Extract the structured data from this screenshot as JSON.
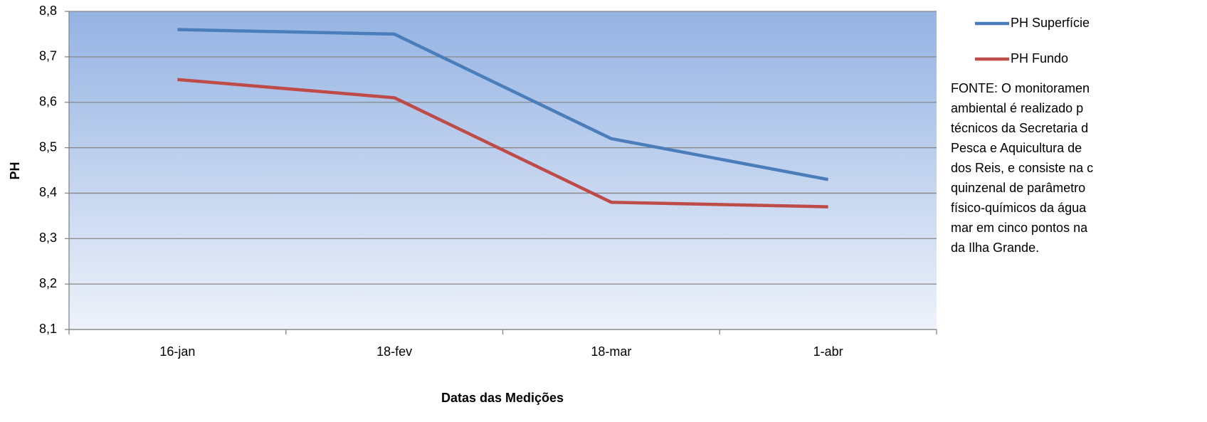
{
  "chart_data": {
    "type": "line",
    "categories": [
      "16-jan",
      "18-fev",
      "18-mar",
      "1-abr"
    ],
    "series": [
      {
        "name": "PH Superfície",
        "color": "#4a7ebb",
        "values": [
          8.76,
          8.75,
          8.52,
          8.43
        ]
      },
      {
        "name": "PH Fundo",
        "color": "#be4b48",
        "values": [
          8.65,
          8.61,
          8.38,
          8.37
        ]
      }
    ],
    "ylim": [
      8.1,
      8.8
    ],
    "yticks": [
      {
        "value": 8.1,
        "label": "8,1"
      },
      {
        "value": 8.2,
        "label": "8,2"
      },
      {
        "value": 8.3,
        "label": "8,3"
      },
      {
        "value": 8.4,
        "label": "8,4"
      },
      {
        "value": 8.5,
        "label": "8,5"
      },
      {
        "value": 8.6,
        "label": "8,6"
      },
      {
        "value": 8.7,
        "label": "8,7"
      },
      {
        "value": 8.8,
        "label": "8,8"
      }
    ],
    "xlabel": "Datas das Medições",
    "ylabel": "PH",
    "grid": true,
    "legend": "right",
    "annotation": [
      "FONTE: O monitoramen",
      "ambiental é realizado p",
      "técnicos da Secretaria d",
      "Pesca e Aquicultura de",
      "dos Reis, e consiste na c",
      "quinzenal de parâmetro",
      "físico-químicos da água",
      "mar em cinco pontos na",
      "da Ilha Grande."
    ]
  }
}
